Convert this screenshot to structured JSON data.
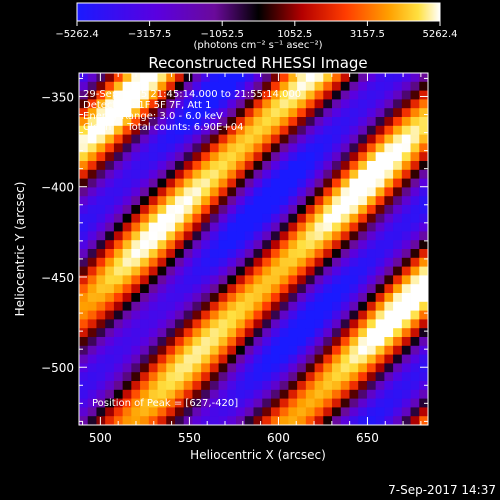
{
  "colorbar": {
    "ticks": [
      "−5262.4",
      "−3157.5",
      "−1052.5",
      "1052.5",
      "3157.5",
      "5262.4"
    ],
    "unit_label": "(photons cm⁻² s⁻¹ asec⁻²)",
    "range": [
      -5262.4,
      5262.4
    ]
  },
  "chart_data": {
    "type": "heatmap",
    "title": "Reconstructed RHESSI Image",
    "xlabel": "Heliocentric X (arcsec)",
    "ylabel": "Heliocentric Y (arcsec)",
    "xlim": [
      488,
      684
    ],
    "ylim": [
      -532,
      -337
    ],
    "xticks": [
      500,
      550,
      600,
      650
    ],
    "yticks": [
      -350,
      -400,
      -450,
      -500
    ],
    "xtick_labels": [
      "500",
      "550",
      "600",
      "650"
    ],
    "ytick_labels": [
      "−350",
      "−400",
      "−450",
      "−500"
    ],
    "annotations": [
      "29-Sep-2015 21:45:14.000 to 21:55:14.000",
      "Detectors: 1F 5F 7F, Att 1",
      "Energy Range: 3.0 - 6.0 keV",
      "Clean     Total counts: 6.90E+04"
    ],
    "peak_label": "Position of Peak = [627,-420]",
    "peak": [
      627,
      -420
    ],
    "peak_value": 5262.4,
    "value_range": [
      -5262.4,
      5262.4
    ]
  },
  "footer": {
    "timestamp": "7-Sep-2017 14:37"
  }
}
